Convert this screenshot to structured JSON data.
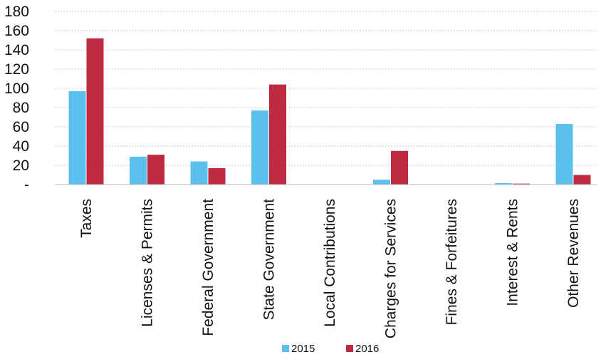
{
  "chart_data": {
    "type": "bar",
    "title": "",
    "xlabel": "",
    "ylabel": "",
    "categories": [
      "Taxes",
      "Licenses & Permits",
      "Federal Government",
      "State Government",
      "Local Contributions",
      "Charges for Services",
      "Fines & Forfeitures",
      "Interest & Rents",
      "Other Revenues"
    ],
    "series": [
      {
        "name": "2015",
        "color": "#5cc0ec",
        "values": [
          97,
          29,
          24,
          77,
          0,
          5,
          0,
          1.5,
          63
        ]
      },
      {
        "name": "2016",
        "color": "#be2b40",
        "values": [
          152,
          31,
          17,
          104,
          0,
          35,
          0,
          1,
          10
        ]
      }
    ],
    "ylim": [
      0,
      180
    ],
    "yticks": [
      {
        "value": 0,
        "label": "-"
      },
      {
        "value": 20,
        "label": "20"
      },
      {
        "value": 40,
        "label": "40"
      },
      {
        "value": 60,
        "label": "60"
      },
      {
        "value": 80,
        "label": "80"
      },
      {
        "value": 100,
        "label": "100"
      },
      {
        "value": 120,
        "label": "120"
      },
      {
        "value": 140,
        "label": "140"
      },
      {
        "value": 160,
        "label": "160"
      },
      {
        "value": 180,
        "label": "180"
      }
    ],
    "grid": true,
    "legend_position": "bottom"
  }
}
